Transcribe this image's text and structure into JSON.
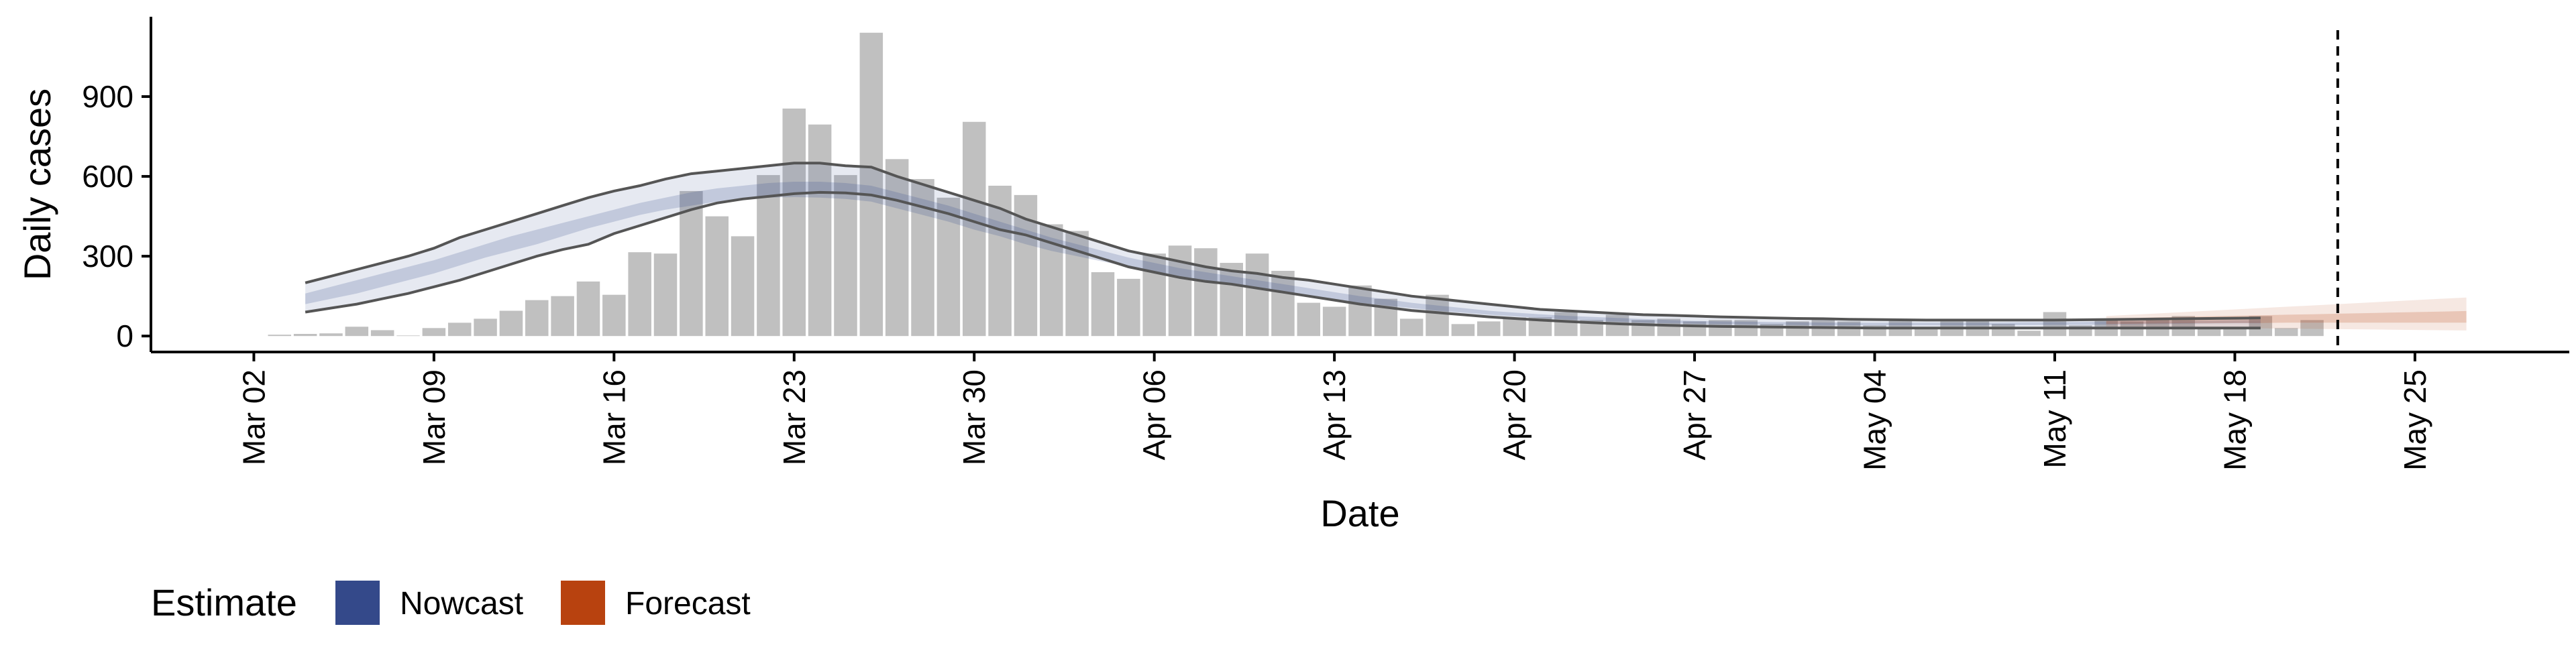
{
  "chart_data": {
    "type": "bar",
    "title": "",
    "xlabel": "Date",
    "ylabel": "Daily cases",
    "ylim": [
      -60,
      1200
    ],
    "yticks": [
      0,
      300,
      600,
      900
    ],
    "ytick_labels": [
      "0",
      "300",
      "600",
      "900"
    ],
    "x_start": "2020-02-27",
    "x_end": "2020-05-31",
    "xticks": [
      "2020-03-02",
      "2020-03-09",
      "2020-03-16",
      "2020-03-23",
      "2020-03-30",
      "2020-04-06",
      "2020-04-13",
      "2020-04-20",
      "2020-04-27",
      "2020-05-04",
      "2020-05-11",
      "2020-05-18",
      "2020-05-25"
    ],
    "xtick_labels": [
      "Mar 02",
      "Mar 09",
      "Mar 16",
      "Mar 23",
      "Mar 30",
      "Apr 06",
      "Apr 13",
      "Apr 20",
      "Apr 27",
      "May 04",
      "May 11",
      "May 18",
      "May 25"
    ],
    "vline_date": "2020-05-22",
    "grid": false,
    "bar_color": "#bdbdbd",
    "bars": {
      "start_date": "2020-03-03",
      "values": [
        5,
        8,
        10,
        35,
        22,
        2,
        30,
        50,
        65,
        95,
        135,
        150,
        205,
        155,
        315,
        310,
        545,
        450,
        375,
        605,
        855,
        795,
        605,
        1140,
        665,
        590,
        520,
        805,
        565,
        530,
        420,
        395,
        240,
        215,
        310,
        340,
        330,
        275,
        310,
        245,
        125,
        110,
        190,
        140,
        65,
        155,
        45,
        55,
        70,
        70,
        90,
        60,
        80,
        60,
        65,
        55,
        60,
        60,
        45,
        55,
        65,
        55,
        40,
        60,
        30,
        55,
        60,
        45,
        20,
        90,
        40,
        60,
        55,
        65,
        75,
        30,
        30,
        75,
        30,
        60
      ]
    },
    "series": [
      {
        "name": "Nowcast",
        "color": "#34498a",
        "start_date": "2020-03-04",
        "outer_upper": [
          200,
          225,
          250,
          275,
          300,
          330,
          370,
          400,
          430,
          460,
          490,
          520,
          545,
          565,
          590,
          610,
          620,
          630,
          640,
          650,
          650,
          640,
          635,
          600,
          570,
          540,
          510,
          480,
          440,
          410,
          380,
          350,
          320,
          300,
          280,
          260,
          245,
          235,
          220,
          210,
          195,
          180,
          165,
          150,
          140,
          130,
          120,
          110,
          100,
          95,
          90,
          85,
          80,
          78,
          75,
          72,
          70,
          68,
          66,
          65,
          63,
          62,
          61,
          60,
          60,
          60,
          60,
          60,
          60,
          61,
          62,
          63,
          64,
          65,
          66,
          67,
          68
        ],
        "inner_upper": [
          160,
          185,
          210,
          235,
          260,
          285,
          315,
          345,
          375,
          400,
          425,
          450,
          475,
          500,
          520,
          540,
          555,
          565,
          575,
          580,
          580,
          575,
          565,
          540,
          515,
          490,
          460,
          430,
          400,
          370,
          345,
          320,
          295,
          275,
          255,
          240,
          225,
          210,
          195,
          180,
          165,
          150,
          138,
          125,
          115,
          105,
          95,
          88,
          82,
          76,
          72,
          68,
          64,
          60,
          57,
          55,
          54,
          53,
          52,
          51,
          50,
          50,
          50,
          50,
          50,
          50,
          51,
          52,
          52,
          53,
          54,
          55,
          56,
          57,
          58,
          59,
          60
        ],
        "inner_lower": [
          120,
          140,
          160,
          185,
          210,
          235,
          265,
          295,
          320,
          345,
          375,
          405,
          430,
          455,
          475,
          490,
          505,
          515,
          520,
          522,
          520,
          515,
          505,
          480,
          455,
          430,
          400,
          375,
          345,
          320,
          300,
          280,
          260,
          240,
          225,
          210,
          195,
          180,
          165,
          150,
          138,
          125,
          115,
          105,
          95,
          88,
          80,
          74,
          68,
          62,
          58,
          54,
          50,
          48,
          46,
          44,
          43,
          42,
          41,
          40,
          40,
          40,
          40,
          40,
          40,
          40,
          41,
          41,
          42,
          42,
          43,
          44,
          45,
          46,
          47,
          48,
          48
        ],
        "outer_lower": [
          90,
          105,
          120,
          140,
          160,
          185,
          210,
          240,
          270,
          300,
          325,
          345,
          385,
          415,
          445,
          475,
          500,
          515,
          525,
          535,
          540,
          538,
          530,
          510,
          485,
          460,
          430,
          400,
          380,
          350,
          320,
          290,
          260,
          240,
          220,
          205,
          195,
          180,
          165,
          150,
          135,
          120,
          108,
          96,
          88,
          80,
          72,
          66,
          60,
          55,
          50,
          46,
          43,
          40,
          38,
          36,
          35,
          34,
          33,
          32,
          31,
          30,
          30,
          30,
          30,
          30,
          30,
          30,
          30,
          30,
          30,
          30,
          30,
          30,
          30,
          30,
          30
        ]
      },
      {
        "name": "Forecast",
        "color": "#b8420f",
        "start_date": "2020-05-13",
        "outer_upper": [
          75,
          80,
          85,
          90,
          95,
          100,
          105,
          110,
          115,
          120,
          125,
          130,
          135,
          140,
          145
        ],
        "inner_upper": [
          65,
          68,
          70,
          72,
          74,
          76,
          78,
          80,
          82,
          84,
          86,
          88,
          90,
          92,
          94
        ],
        "inner_lower": [
          45,
          46,
          47,
          48,
          48,
          49,
          49,
          50,
          50,
          50,
          50,
          50,
          50,
          50,
          50
        ],
        "outer_lower": [
          35,
          34,
          33,
          32,
          31,
          30,
          29,
          28,
          27,
          26,
          25,
          24,
          23,
          22,
          21
        ]
      }
    ],
    "legend": {
      "title": "Estimate",
      "position": "bottom-left",
      "entries": [
        {
          "label": "Nowcast",
          "color": "#34498a"
        },
        {
          "label": "Forecast",
          "color": "#b8420f"
        }
      ]
    }
  }
}
